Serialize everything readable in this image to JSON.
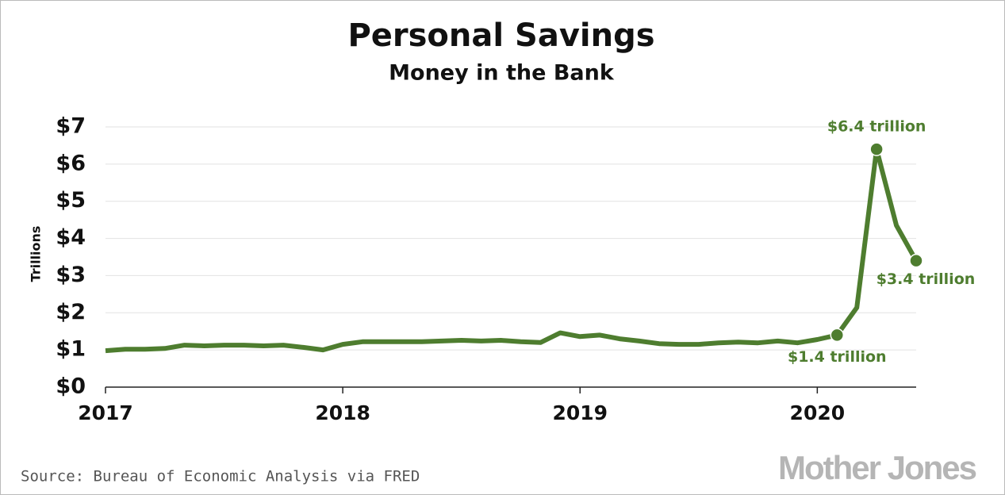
{
  "chart_data": {
    "type": "line",
    "title": "Personal Savings",
    "subtitle": "Money in the Bank",
    "y_label": "Trillions",
    "source": "Source: Bureau of Economic Analysis via FRED",
    "brand": "Mother Jones",
    "x": [
      2017,
      2017.0833,
      2017.1667,
      2017.25,
      2017.3333,
      2017.4167,
      2017.5,
      2017.5833,
      2017.6667,
      2017.75,
      2017.8333,
      2017.9167,
      2018,
      2018.0833,
      2018.1667,
      2018.25,
      2018.3333,
      2018.4167,
      2018.5,
      2018.5833,
      2018.6667,
      2018.75,
      2018.8333,
      2018.9167,
      2019,
      2019.0833,
      2019.1667,
      2019.25,
      2019.3333,
      2019.4167,
      2019.5,
      2019.5833,
      2019.6667,
      2019.75,
      2019.8333,
      2019.9167,
      2020,
      2020.0833,
      2020.1667,
      2020.25,
      2020.3333,
      2020.4167
    ],
    "values": [
      0.98,
      1.02,
      1.02,
      1.04,
      1.13,
      1.11,
      1.13,
      1.13,
      1.11,
      1.13,
      1.07,
      1.0,
      1.15,
      1.22,
      1.22,
      1.22,
      1.22,
      1.24,
      1.26,
      1.24,
      1.26,
      1.22,
      1.2,
      1.46,
      1.36,
      1.4,
      1.3,
      1.24,
      1.17,
      1.15,
      1.15,
      1.19,
      1.21,
      1.19,
      1.24,
      1.19,
      1.28,
      1.4,
      2.14,
      6.4,
      4.35,
      3.4
    ],
    "value_labels": [
      null,
      null,
      null,
      null,
      null,
      null,
      null,
      null,
      null,
      null,
      null,
      null,
      null,
      null,
      null,
      null,
      null,
      null,
      null,
      null,
      null,
      null,
      null,
      null,
      null,
      null,
      null,
      null,
      null,
      null,
      null,
      null,
      null,
      null,
      null,
      null,
      null,
      "$1.4 trillion",
      null,
      "$6.4 trillion",
      null,
      "$3.4 trillion"
    ],
    "color": "#4e7d2f",
    "xlim": [
      2017,
      2020.4167
    ],
    "xticks": [
      2017,
      2018,
      2019,
      2020
    ],
    "ylim": [
      0,
      7
    ],
    "yticks": [
      {
        "value": 0,
        "label": "$0"
      },
      {
        "value": 1,
        "label": "$1"
      },
      {
        "value": 2,
        "label": "$2"
      },
      {
        "value": 3,
        "label": "$3"
      },
      {
        "value": 4,
        "label": "$4"
      },
      {
        "value": 5,
        "label": "$5"
      },
      {
        "value": 6,
        "label": "$6"
      },
      {
        "value": 7,
        "label": "$7"
      }
    ],
    "grid": true
  }
}
